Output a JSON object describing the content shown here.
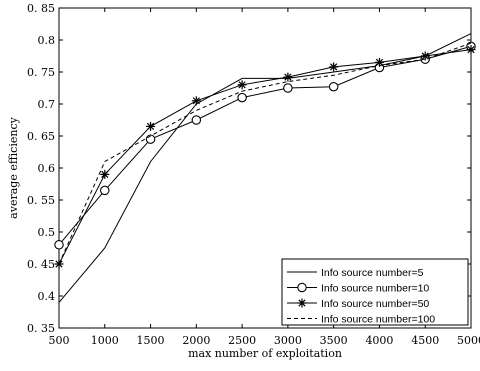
{
  "chart_data": {
    "type": "line",
    "title": "",
    "xlabel": "max number of exploitation",
    "ylabel": "average efficiency",
    "xlim": [
      500,
      5000
    ],
    "ylim": [
      0.35,
      0.85
    ],
    "xticks": [
      500,
      1000,
      1500,
      2000,
      2500,
      3000,
      3500,
      4000,
      4500,
      5000
    ],
    "xtick_labels": [
      "500",
      "1000",
      "1500",
      "2000",
      "2500",
      "3000",
      "3500",
      "4000",
      "4500",
      "5000"
    ],
    "yticks": [
      0.35,
      0.4,
      0.45,
      0.5,
      0.55,
      0.6,
      0.65,
      0.7,
      0.75,
      0.8,
      0.85
    ],
    "ytick_labels": [
      "0. 35",
      "0.4",
      "0. 45",
      "0.5",
      "0. 55",
      "0.6",
      "0. 65",
      "0.7",
      "0. 75",
      "0.8",
      "0. 85"
    ],
    "grid": false,
    "legend_position": "bottom-right",
    "x": [
      500,
      1000,
      1500,
      2000,
      2500,
      3000,
      3500,
      4000,
      4500,
      5000
    ],
    "series": [
      {
        "name": "Info source number=5",
        "style": "solid",
        "marker": "none",
        "values": [
          0.39,
          0.475,
          0.61,
          0.7,
          0.74,
          0.74,
          0.75,
          0.76,
          0.775,
          0.81
        ]
      },
      {
        "name": "Info source number=10",
        "style": "solid",
        "marker": "circle",
        "values": [
          0.48,
          0.565,
          0.645,
          0.675,
          0.71,
          0.725,
          0.727,
          0.757,
          0.77,
          0.79
        ]
      },
      {
        "name": "Info source number=50",
        "style": "solid",
        "marker": "star",
        "values": [
          0.45,
          0.59,
          0.665,
          0.705,
          0.73,
          0.742,
          0.758,
          0.765,
          0.775,
          0.785
        ]
      },
      {
        "name": "Info source number=100",
        "style": "dashed",
        "marker": "none",
        "values": [
          0.45,
          0.61,
          0.65,
          0.69,
          0.72,
          0.735,
          0.745,
          0.76,
          0.77,
          0.795
        ]
      }
    ]
  }
}
